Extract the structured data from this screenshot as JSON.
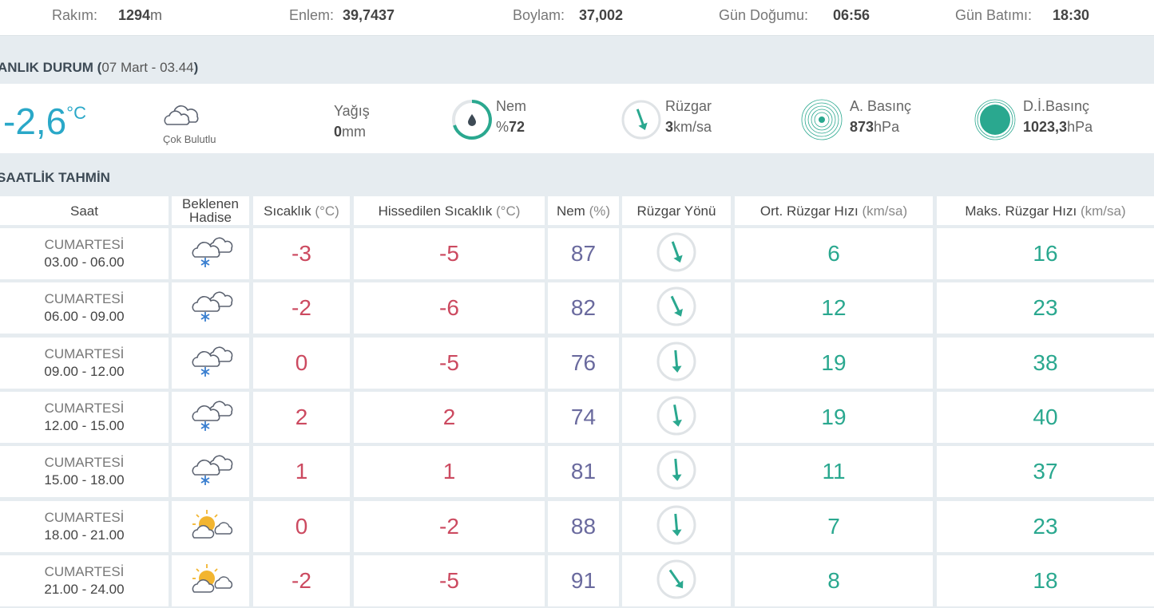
{
  "info": [
    {
      "label": "Rakım:",
      "value": "1294",
      "unit": "m"
    },
    {
      "label": "Enlem:",
      "value": "39,7437"
    },
    {
      "label": "Boylam:",
      "value": "37,002"
    },
    {
      "label": "Gün Doğumu:",
      "value": "06:56"
    },
    {
      "label": "Gün Batımı:",
      "value": "18:30"
    }
  ],
  "current": {
    "title": "ANLIK DURUM (",
    "date": "07 Mart - 03.44",
    "title_end": ")",
    "temperature": "-2,6",
    "temperature_unit": "°C",
    "condition": "Çok Bulutlu",
    "precip_label": "Yağış",
    "precip_value": "0",
    "precip_unit": "mm",
    "humidity_label": "Nem",
    "humidity_unit": "%",
    "humidity_value": "72",
    "wind_label": "Rüzgar",
    "wind_value": "3",
    "wind_unit": "km/sa",
    "pressure_label": "A. Basınç",
    "pressure_value": "873",
    "pressure_unit": "hPa",
    "sea_pressure_label": "D.İ.Basınç",
    "sea_pressure_value": "1023,3",
    "sea_pressure_unit": "hPa"
  },
  "forecast": {
    "title": "SAATLİK TAHMİN",
    "headers": [
      {
        "text": "Saat"
      },
      {
        "text": "Beklenen Hadise"
      },
      {
        "text": "Sıcaklık",
        "unit": "(°C)"
      },
      {
        "text": "Hissedilen Sıcaklık",
        "unit": "(°C)"
      },
      {
        "text": "Nem",
        "unit": "(%)"
      },
      {
        "text": "Rüzgar Yönü"
      },
      {
        "text": "Ort. Rüzgar Hızı",
        "unit": "(km/sa)"
      },
      {
        "text": "Maks. Rüzgar Hızı",
        "unit": "(km/sa)"
      }
    ],
    "rows": [
      {
        "day": "CUMARTESİ",
        "time": "03.00 - 06.00",
        "temp": -3,
        "feels": -5,
        "humidity": 87,
        "wind_avg": 6,
        "wind_max": 16
      },
      {
        "day": "CUMARTESİ",
        "time": "06.00 - 09.00",
        "temp": -2,
        "feels": -6,
        "humidity": 82,
        "wind_avg": 12,
        "wind_max": 23
      },
      {
        "day": "CUMARTESİ",
        "time": "09.00 - 12.00",
        "temp": 0,
        "feels": -5,
        "humidity": 76,
        "wind_avg": 19,
        "wind_max": 38
      },
      {
        "day": "CUMARTESİ",
        "time": "12.00 - 15.00",
        "temp": 2,
        "feels": 2,
        "humidity": 74,
        "wind_avg": 19,
        "wind_max": 40
      },
      {
        "day": "CUMARTESİ",
        "time": "15.00 - 18.00",
        "temp": 1,
        "feels": 1,
        "humidity": 81,
        "wind_avg": 11,
        "wind_max": 37
      },
      {
        "day": "CUMARTESİ",
        "time": "18.00 - 21.00",
        "temp": 0,
        "feels": -2,
        "humidity": 88,
        "wind_avg": 7,
        "wind_max": 23
      },
      {
        "day": "CUMARTESİ",
        "time": "21.00 - 24.00",
        "temp": -2,
        "feels": -5,
        "humidity": 91,
        "wind_avg": 8,
        "wind_max": 18
      }
    ]
  }
}
